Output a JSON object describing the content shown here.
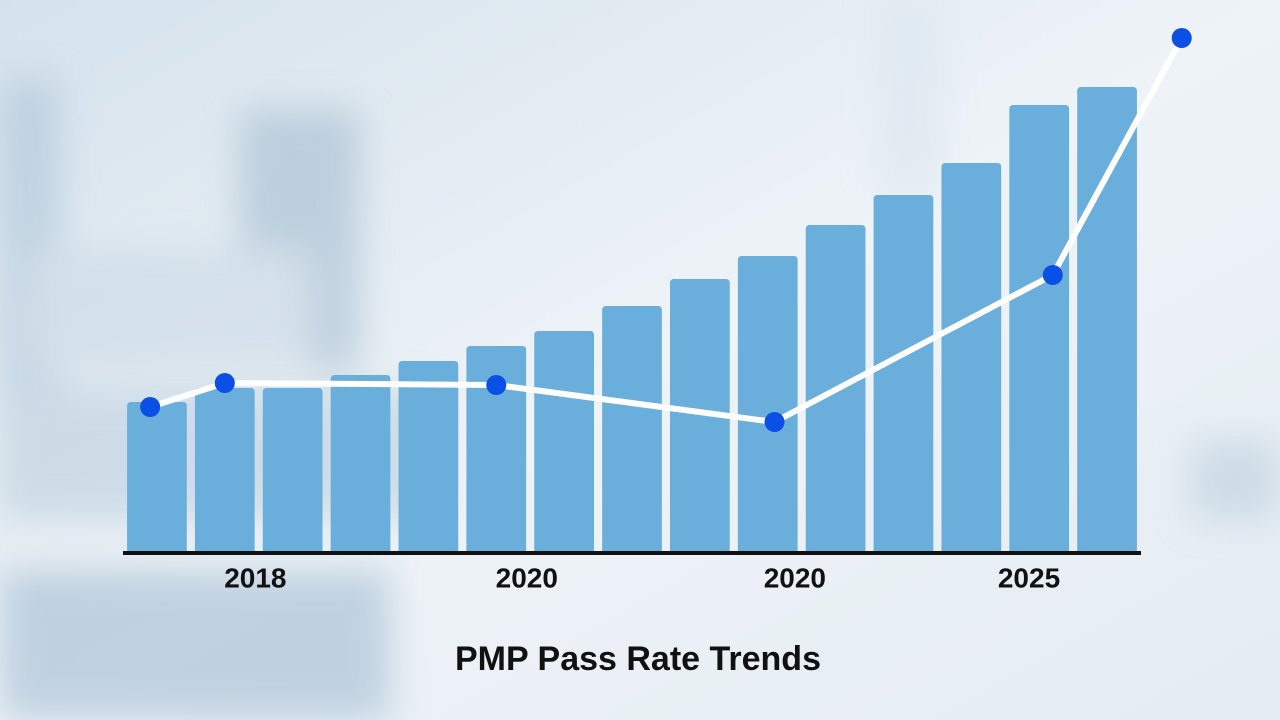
{
  "chart_data": {
    "type": "bar",
    "title": "PMP Pass Rate Trends",
    "xlim": [
      -0.5,
      14.5
    ],
    "ylim": [
      0,
      515
    ],
    "xticks": [
      {
        "value": 1.45,
        "label": "2018"
      },
      {
        "value": 5.45,
        "label": "2020"
      },
      {
        "value": 9.4,
        "label": "2020"
      },
      {
        "value": 12.85,
        "label": "2025"
      }
    ],
    "series": [
      {
        "type": "bar",
        "color": "#6aaedb",
        "x": [
          0,
          1,
          2,
          3,
          4,
          5,
          6,
          7,
          8,
          9,
          10,
          11,
          12,
          13,
          14
        ],
        "values": [
          151,
          165,
          165,
          178,
          192,
          207,
          222,
          247,
          274,
          297,
          328,
          358,
          390,
          448,
          466
        ]
      },
      {
        "type": "line",
        "color": "#ffffff",
        "marker_color": "#0a4fe6",
        "x": [
          -0.1,
          1,
          5,
          9.1,
          13.2,
          15.1
        ],
        "values": [
          146,
          170,
          168,
          131,
          278,
          515
        ]
      }
    ]
  }
}
